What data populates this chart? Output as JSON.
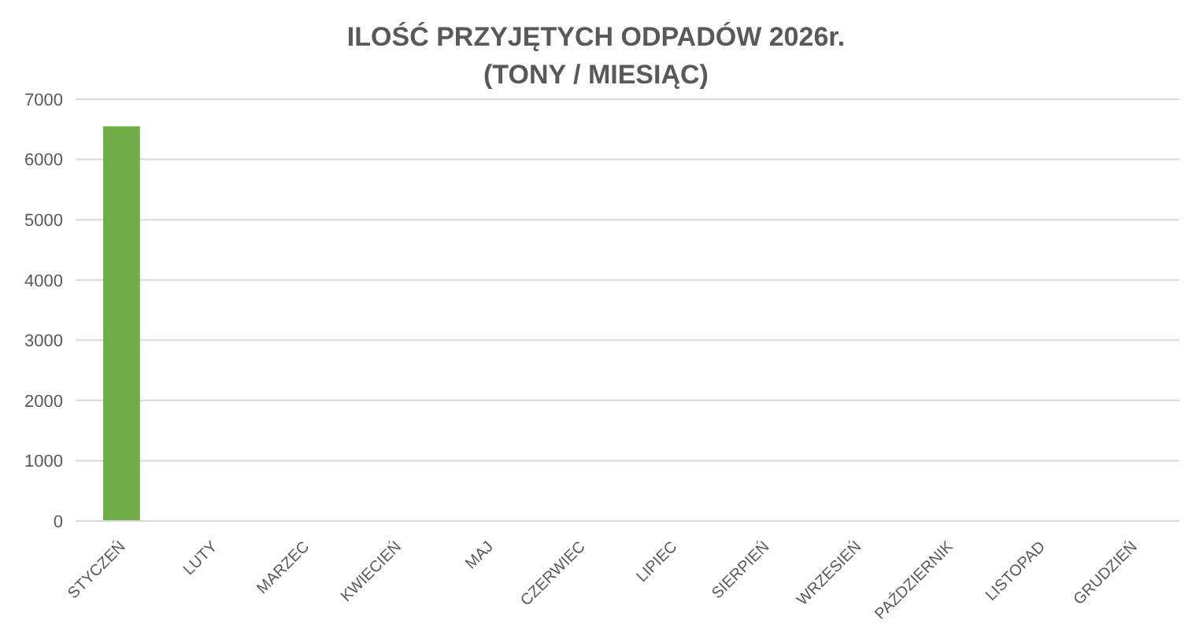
{
  "chart_data": {
    "type": "bar",
    "title": "ILOŚĆ PRZYJĘTYCH ODPADÓW 2026r.\n(TONY / MIESIĄC)",
    "categories": [
      "STYCZEŃ",
      "LUTY",
      "MARZEC",
      "KWIECIEŃ",
      "MAJ",
      "CZERWIEC",
      "LIPIEC",
      "SIERPIEŃ",
      "WRZESIEŃ",
      "PAŹDZIERNIK",
      "LISTOPAD",
      "GRUDZIEŃ"
    ],
    "values": [
      6550,
      null,
      null,
      null,
      null,
      null,
      null,
      null,
      null,
      null,
      null,
      null
    ],
    "color": "#70ad47",
    "ylim": [
      0,
      7000
    ],
    "yticks": [
      0,
      1000,
      2000,
      3000,
      4000,
      5000,
      6000,
      7000
    ],
    "grid": "y",
    "legend": false
  }
}
